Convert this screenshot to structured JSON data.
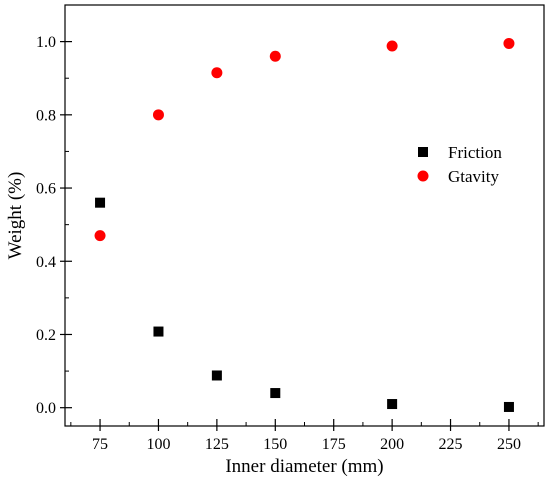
{
  "chart_data": {
    "type": "scatter",
    "xlabel": "Inner diameter (mm)",
    "ylabel": "Weight (%)",
    "xlim": [
      60,
      265
    ],
    "ylim": [
      -0.05,
      1.1
    ],
    "xticks": [
      75,
      100,
      125,
      150,
      175,
      200,
      225,
      250
    ],
    "yticks": [
      0.0,
      0.2,
      0.4,
      0.6,
      0.8,
      1.0
    ],
    "xtick_labels": [
      "75",
      "100",
      "125",
      "150",
      "175",
      "200",
      "225",
      "250"
    ],
    "ytick_labels": [
      "0.0",
      "0.2",
      "0.4",
      "0.6",
      "0.8",
      "1.0"
    ],
    "grid": false,
    "legend_position": "right-center",
    "series": [
      {
        "name": "Friction",
        "marker": "square",
        "color": "#000000",
        "x": [
          75,
          100,
          125,
          150,
          200,
          250
        ],
        "y": [
          0.56,
          0.208,
          0.088,
          0.04,
          0.01,
          0.002
        ]
      },
      {
        "name": "Gtavity",
        "marker": "circle",
        "color": "#ff0000",
        "x": [
          75,
          100,
          125,
          150,
          200,
          250
        ],
        "y": [
          0.47,
          0.8,
          0.915,
          0.96,
          0.988,
          0.995
        ]
      }
    ]
  }
}
